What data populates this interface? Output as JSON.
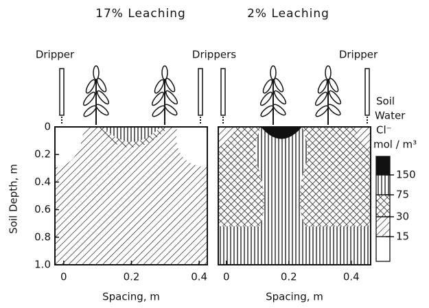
{
  "chart_data": [
    {
      "type": "contour",
      "title": "17% Leaching",
      "xlabel": "Spacing, m",
      "ylabel": "Soil Depth, m",
      "xlim": [
        -0.026,
        0.424
      ],
      "xticks": [
        0,
        0.2,
        0.4
      ],
      "ylim": [
        0,
        1
      ],
      "yticks": [
        0,
        0.2,
        0.4,
        0.6,
        0.8,
        {
          "value": 1,
          "label": "1.0"
        }
      ]
    },
    {
      "type": "contour",
      "title": "2% Leaching",
      "xlabel": "Spacing, m",
      "xlim": [
        -0.026,
        0.462
      ],
      "xticks": [
        0,
        0.2,
        0.4
      ],
      "ylim": [
        0,
        1
      ]
    }
  ],
  "annotations": [
    "Dripper",
    "Drippers",
    "Dripper"
  ],
  "legend": {
    "title": [
      "Soil",
      "Water",
      "Cl⁻",
      "mol / m³"
    ],
    "ticks": [
      150,
      75,
      30,
      15
    ]
  }
}
